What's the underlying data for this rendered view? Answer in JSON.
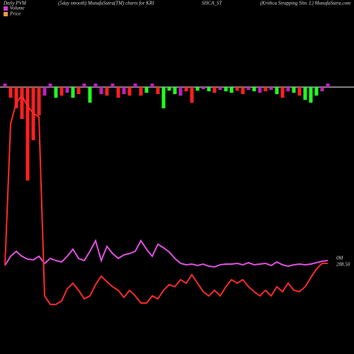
{
  "chart_data": {
    "type": "pvm",
    "header": [
      "Daily PVM",
      "(5day smooth) MunafaSutra(TM) charts for KRI",
      "SHCA_ST",
      "(Krithca Strapping Sltn. L) MunafaSutra.com"
    ],
    "ylim": [
      200,
      516
    ],
    "pvm_ylim": [
      0,
      350
    ],
    "y2lim": [
      -130,
      10
    ],
    "series": [
      {
        "name": "Volume",
        "color": "#d040d0",
        "axis": "y2",
        "values": [
          5,
          -15,
          -30,
          -45,
          -132,
          -75,
          -40,
          -12,
          5,
          -15,
          -12,
          -8,
          -15,
          -10,
          5,
          -22,
          5,
          -10,
          -12,
          5,
          -15,
          -10,
          -12,
          5,
          -12,
          -8,
          5,
          -10,
          -30,
          -5,
          -10,
          -12,
          -6,
          -22,
          -5,
          -3,
          -6,
          -8,
          -4,
          -6,
          -8,
          -5,
          -10,
          -4,
          -6,
          -8,
          -6,
          -4,
          -10,
          -15,
          -6,
          -8,
          -12,
          -18,
          -22,
          -12,
          -6,
          5
        ],
        "colors": [
          "#c020c0",
          "#ff2020",
          "#ff2020",
          "#ff2020",
          "#ff2020",
          "#ff2020",
          "#ff2020",
          "#c020c0",
          "#c020c0",
          "#20ff20",
          "#ff2020",
          "#c020c0",
          "#20ff20",
          "#ff2020",
          "#c020c0",
          "#20ff20",
          "#c020c0",
          "#c020c0",
          "#ff2020",
          "#c020c0",
          "#ff2020",
          "#c020c0",
          "#ff2020",
          "#c020c0",
          "#ff2020",
          "#20ff20",
          "#c020c0",
          "#ff2020",
          "#20ff20",
          "#20ff20",
          "#20ff20",
          "#c020c0",
          "#ff2020",
          "#ff2020",
          "#20ff20",
          "#c020c0",
          "#20ff20",
          "#ff2020",
          "#c020c0",
          "#20ff20",
          "#20ff20",
          "#ff2020",
          "#ff2020",
          "#c020c0",
          "#20ff20",
          "#c020c0",
          "#ff2020",
          "#c020c0",
          "#20ff20",
          "#ff2020",
          "#c020c0",
          "#20ff20",
          "#ff2020",
          "#20ff20",
          "#20ff20",
          "#20ff20",
          "#c020c0",
          "#c020c0"
        ],
        "end_label": "0M"
      },
      {
        "name": "Price",
        "color": "#ff2a2a",
        "legend_color": "#ff9a40",
        "values": [
          285.8,
          466.4,
          493.4,
          502.5,
          488.9,
          479.9,
          475.4,
          247.0,
          236.1,
          236.1,
          240.6,
          256.0,
          263.2,
          254.2,
          243.3,
          247.0,
          261.4,
          272.2,
          265.0,
          258.7,
          254.2,
          245.1,
          254.2,
          247.0,
          237.9,
          237.9,
          247.0,
          243.3,
          254.2,
          261.4,
          258.7,
          267.7,
          263.2,
          274.0,
          263.2,
          252.4,
          247.0,
          254.2,
          247.0,
          258.7,
          267.7,
          263.2,
          267.7,
          258.7,
          252.4,
          247.0,
          254.2,
          247.0,
          258.7,
          252.4,
          263.2,
          254.2,
          252.4,
          258.7,
          270.4,
          281.3,
          288.5,
          288.5
        ],
        "end_label": "288.50"
      },
      {
        "name": "PVM",
        "color": "#e050e0",
        "values": [
          95,
          108,
          115,
          108,
          104,
          103,
          108,
          98,
          105,
          102,
          100,
          108,
          118,
          105,
          102,
          115,
          130,
          102,
          122,
          112,
          105,
          110,
          112,
          115,
          130,
          118,
          108,
          125,
          120,
          114,
          105,
          98,
          96,
          97,
          95,
          97,
          94,
          93,
          96,
          97,
          97,
          98,
          96,
          99,
          96,
          97,
          98,
          95,
          100,
          96,
          94,
          96,
          97,
          96,
          97,
          99,
          101,
          102
        ]
      }
    ]
  }
}
